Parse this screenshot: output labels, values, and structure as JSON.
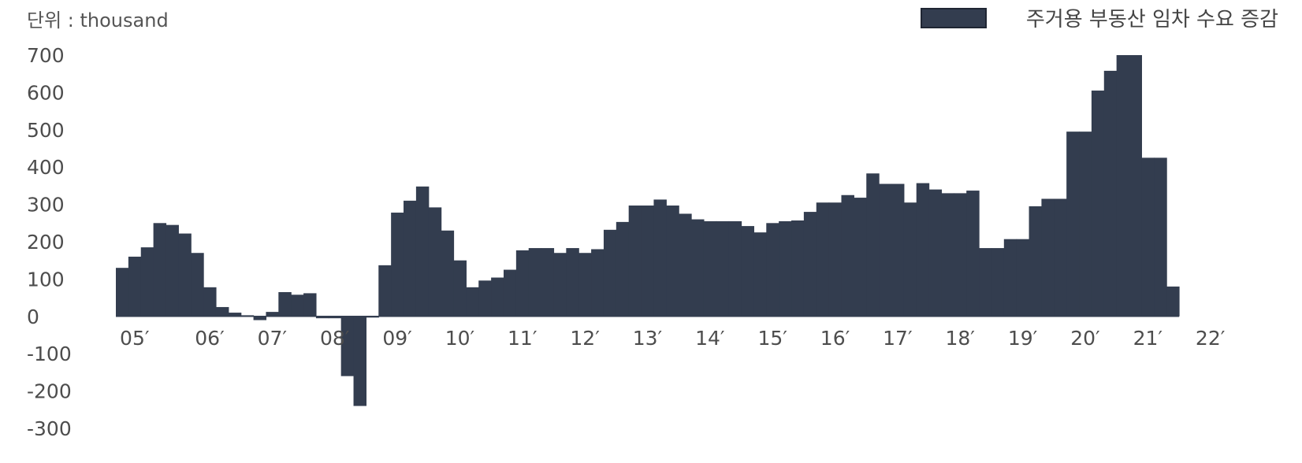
{
  "chart_data": {
    "type": "bar",
    "title": "",
    "unit_label": "단위 : thousand",
    "legend": {
      "label": "주거용 부동산 임차 수요 증감",
      "placement": "top-right"
    },
    "bar_color": "#333d4f",
    "ylim": [
      -300,
      700
    ],
    "yticks": [
      "700",
      "600",
      "500",
      "400",
      "300",
      "200",
      "100",
      "0",
      "-100",
      "-200",
      "-300"
    ],
    "ytick_values": [
      700,
      600,
      500,
      400,
      300,
      200,
      100,
      0,
      -100,
      -200,
      -300
    ],
    "xtick_labels": [
      "05′",
      "06′",
      "07′",
      "08′",
      "09′",
      "10′",
      "11′",
      "12′",
      "13′",
      "14′",
      "15′",
      "16′",
      "17′",
      "18′",
      "19′",
      "20′",
      "21′",
      "22′"
    ],
    "xtick_positions": [
      1.5,
      7.5,
      12.5,
      17.5,
      22.5,
      27.5,
      32.5,
      37.5,
      42.5,
      47.5,
      52.5,
      57.5,
      62.5,
      67.5,
      72.5,
      77.5,
      82.5,
      87.5
    ],
    "values": [
      130,
      160,
      185,
      250,
      245,
      222,
      170,
      78,
      25,
      10,
      3,
      -10,
      12,
      65,
      58,
      62,
      -5,
      -5,
      -160,
      -240,
      -3,
      137,
      278,
      310,
      348,
      292,
      230,
      150,
      78,
      96,
      104,
      125,
      177,
      183,
      183,
      170,
      183,
      170,
      180,
      232,
      253,
      297,
      297,
      313,
      297,
      275,
      260,
      255,
      255,
      255,
      242,
      225,
      250,
      255,
      257,
      280,
      305,
      305,
      325,
      318,
      383,
      355,
      355,
      305,
      357,
      340,
      330,
      330,
      337,
      183,
      183,
      207,
      207,
      295,
      315,
      315,
      495,
      495,
      605,
      658,
      700,
      700,
      425,
      425,
      80
    ]
  }
}
